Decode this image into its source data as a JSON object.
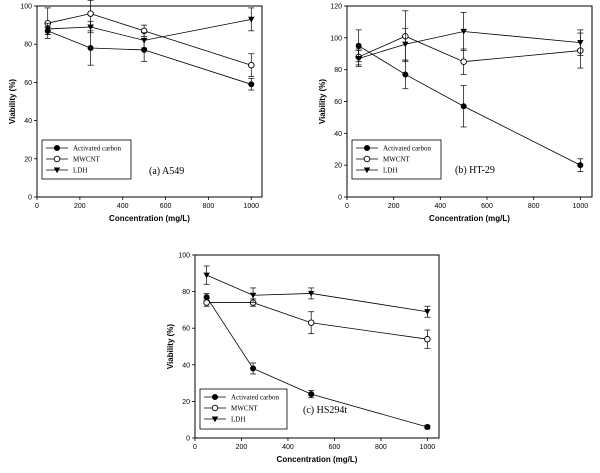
{
  "chart_data": [
    {
      "type": "line",
      "panel_label": "(a) A549",
      "xlabel": "Concentration (mg/L)",
      "ylabel": "Viability (%)",
      "xlim": [
        0,
        1050
      ],
      "ylim": [
        0,
        100
      ],
      "xticks": [
        "0",
        "200",
        "400",
        "600",
        "800",
        "1000"
      ],
      "yticks": [
        "0",
        "20",
        "40",
        "60",
        "80",
        "100"
      ],
      "legend_position": "bottom-left",
      "x": [
        50,
        250,
        500,
        1000
      ],
      "series": [
        {
          "name": "Activated carbon",
          "marker": "filled-circle",
          "values": [
            87,
            78,
            77,
            59
          ],
          "errors": [
            2,
            9,
            6,
            3
          ]
        },
        {
          "name": "MWCNT",
          "marker": "open-circle",
          "values": [
            91,
            96,
            87,
            69
          ],
          "errors": [
            8,
            7,
            3,
            6
          ]
        },
        {
          "name": "LDH",
          "marker": "filled-triangle-down",
          "values": [
            88,
            89,
            82,
            93
          ],
          "errors": [
            3,
            3,
            4,
            6
          ]
        }
      ]
    },
    {
      "type": "line",
      "panel_label": "(b) HT-29",
      "xlabel": "Concentration (mg/L)",
      "ylabel": "Viability (%)",
      "xlim": [
        0,
        1050
      ],
      "ylim": [
        0,
        120
      ],
      "xticks": [
        "0",
        "200",
        "400",
        "600",
        "800",
        "1000"
      ],
      "yticks": [
        "0",
        "20",
        "40",
        "60",
        "80",
        "100",
        "120"
      ],
      "legend_position": "bottom-left",
      "x": [
        50,
        250,
        500,
        1000
      ],
      "series": [
        {
          "name": "Activated carbon",
          "marker": "filled-circle",
          "values": [
            95,
            77,
            57,
            20
          ],
          "errors": [
            10,
            9,
            13,
            4
          ]
        },
        {
          "name": "MWCNT",
          "marker": "open-circle",
          "values": [
            88,
            101,
            85,
            92
          ],
          "errors": [
            5,
            16,
            8,
            11
          ]
        },
        {
          "name": "LDH",
          "marker": "filled-triangle-down",
          "values": [
            87,
            96,
            104,
            97
          ],
          "errors": [
            5,
            10,
            12,
            8
          ]
        }
      ]
    },
    {
      "type": "line",
      "panel_label": "(c) HS294t",
      "xlabel": "Concentration (mg/L)",
      "ylabel": "Viability (%)",
      "xlim": [
        0,
        1050
      ],
      "ylim": [
        0,
        100
      ],
      "xticks": [
        "0",
        "200",
        "400",
        "600",
        "800",
        "1000"
      ],
      "yticks": [
        "0",
        "20",
        "40",
        "60",
        "80",
        "100"
      ],
      "legend_position": "bottom-left",
      "x": [
        50,
        250,
        500,
        1000
      ],
      "series": [
        {
          "name": "Activated carbon",
          "marker": "filled-circle",
          "values": [
            77,
            38,
            24,
            6
          ],
          "errors": [
            2,
            3,
            2,
            1
          ]
        },
        {
          "name": "MWCNT",
          "marker": "open-circle",
          "values": [
            74,
            74,
            63,
            54
          ],
          "errors": [
            2,
            2,
            6,
            5
          ]
        },
        {
          "name": "LDH",
          "marker": "filled-triangle-down",
          "values": [
            89,
            78,
            79,
            69
          ],
          "errors": [
            5,
            4,
            3,
            3
          ]
        }
      ]
    }
  ]
}
